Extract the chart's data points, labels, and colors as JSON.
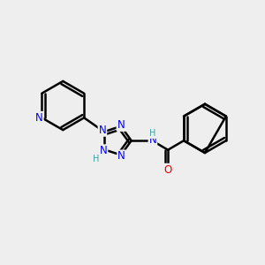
{
  "bg_color": "#eeeeee",
  "bond_color": "#000000",
  "bond_width": 1.8,
  "atom_colors": {
    "N": "#0000ee",
    "O": "#ee0000",
    "C": "#000000",
    "H": "#40a0a0"
  },
  "font_size_atom": 8.5,
  "font_size_H": 7.0,
  "xlim": [
    -3.5,
    4.5
  ],
  "ylim": [
    -2.0,
    2.5
  ]
}
